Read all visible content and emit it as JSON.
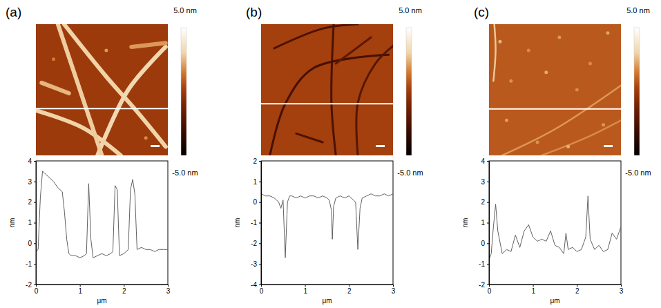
{
  "chart_data": [
    {
      "type": "line",
      "title": "(a)",
      "x_label": "μm",
      "y_label": "nm",
      "color": "#606060",
      "x": [
        0,
        0.05,
        0.1,
        0.15,
        0.2,
        0.3,
        0.4,
        0.5,
        0.6,
        0.65,
        0.7,
        0.75,
        0.8,
        0.9,
        1.0,
        1.1,
        1.15,
        1.2,
        1.25,
        1.3,
        1.4,
        1.5,
        1.6,
        1.7,
        1.75,
        1.8,
        1.85,
        1.9,
        2.0,
        2.1,
        2.15,
        2.2,
        2.25,
        2.3,
        2.4,
        2.5,
        2.6,
        2.7,
        2.8,
        2.9,
        3.0
      ],
      "values": [
        -0.4,
        -0.3,
        2.2,
        3.5,
        3.4,
        3.2,
        3.0,
        2.7,
        2.5,
        1.5,
        0.2,
        -0.5,
        -0.6,
        -0.6,
        -0.7,
        -0.6,
        -0.5,
        2.9,
        0.2,
        -0.7,
        -0.6,
        -0.5,
        -0.6,
        -0.5,
        -0.4,
        2.8,
        2.6,
        -0.6,
        -0.5,
        -0.3,
        2.6,
        3.1,
        2.4,
        -0.3,
        -0.2,
        -0.3,
        -0.3,
        -0.4,
        -0.3,
        -0.3,
        -0.3
      ],
      "xlim": [
        0,
        3
      ],
      "xticks": [
        0,
        1,
        2,
        3
      ],
      "ylim": [
        -2,
        4
      ],
      "yticks": [
        -2,
        -1,
        0,
        1,
        2,
        3,
        4
      ],
      "colorbar": {
        "range": [
          -5,
          5
        ],
        "ticks": [
          {
            "value": 5,
            "label": "5.0 nm"
          },
          {
            "value": -5,
            "label": "-5.0 nm"
          }
        ]
      },
      "background": 0,
      "fibers": [
        {
          "points": [
            [
              0.64,
              0
            ],
            [
              1.6,
              1.2
            ],
            [
              2.3,
              2.0
            ],
            [
              2.95,
              2.8
            ]
          ],
          "height": 3
        },
        {
          "points": [
            [
              2.95,
              0.52
            ],
            [
              2.1,
              1.5
            ],
            [
              1.4,
              3.0
            ]
          ],
          "height": 3.2
        },
        {
          "points": [
            [
              0,
              1.97
            ],
            [
              1.07,
              2.37
            ],
            [
              1.93,
              3.0
            ]
          ],
          "height": 3
        },
        {
          "points": [
            [
              0.13,
              1.34
            ],
            [
              0.75,
              1.58
            ]
          ],
          "height": 2.5
        },
        {
          "points": [
            [
              2.17,
              0.52
            ],
            [
              2.95,
              0.43
            ]
          ],
          "height": 2
        },
        {
          "points": [
            [
              0.5,
              0
            ],
            [
              1.0,
              1.5
            ],
            [
              1.5,
              3.0
            ]
          ],
          "height": 2.9
        }
      ],
      "spots": [
        [
          1.6,
          0.6,
          2.0
        ],
        [
          0.4,
          0.8,
          1.5
        ],
        [
          2.5,
          2.6,
          1.8
        ]
      ],
      "profile_y": 1.93,
      "scale_bar": 0.2
    },
    {
      "type": "line",
      "title": "(b)",
      "x_label": "μm",
      "y_label": "nm",
      "color": "#606060",
      "x": [
        0,
        0.1,
        0.2,
        0.3,
        0.4,
        0.45,
        0.5,
        0.55,
        0.6,
        0.65,
        0.7,
        0.8,
        0.9,
        1.0,
        1.1,
        1.2,
        1.3,
        1.4,
        1.5,
        1.55,
        1.6,
        1.62,
        1.65,
        1.7,
        1.8,
        1.9,
        2.0,
        2.1,
        2.15,
        2.2,
        2.25,
        2.3,
        2.4,
        2.5,
        2.6,
        2.7,
        2.8,
        2.9,
        3.0
      ],
      "values": [
        0.4,
        0.3,
        0.3,
        0.2,
        0.0,
        -0.3,
        0.1,
        -2.7,
        0.0,
        0.3,
        0.3,
        0.2,
        0.3,
        0.2,
        0.3,
        0.3,
        0.2,
        0.3,
        0.2,
        0.1,
        -0.4,
        -1.8,
        -0.2,
        0.2,
        0.3,
        0.2,
        0.3,
        0.1,
        0.0,
        -2.3,
        -0.3,
        0.2,
        0.3,
        0.4,
        0.3,
        0.3,
        0.4,
        0.3,
        0.4
      ],
      "xlim": [
        0,
        3
      ],
      "xticks": [
        0,
        1,
        2,
        3
      ],
      "ylim": [
        -4,
        2
      ],
      "yticks": [
        -4,
        -3,
        -2,
        -1,
        0,
        1,
        2
      ],
      "colorbar": {
        "range": [
          -5,
          5
        ],
        "ticks": [
          {
            "value": 5,
            "label": "5.0 nm"
          },
          {
            "value": -5,
            "label": "-5.0 nm"
          }
        ]
      },
      "background": 0.2,
      "fibers": [
        {
          "points": [
            [
              0.3,
              0.55
            ],
            [
              1.4,
              0.1
            ],
            [
              2.2,
              0.0
            ]
          ],
          "height": -2.5
        },
        {
          "points": [
            [
              1.65,
              0
            ],
            [
              1.6,
              1.8
            ],
            [
              1.7,
              3.0
            ]
          ],
          "height": -2.5
        },
        {
          "points": [
            [
              0.2,
              3.0
            ],
            [
              0.55,
              1.82
            ],
            [
              1.2,
              1.0
            ],
            [
              2.9,
              0.7
            ]
          ],
          "height": -2.7
        },
        {
          "points": [
            [
              2.2,
              3.0
            ],
            [
              2.2,
              1.8
            ],
            [
              2.6,
              0.9
            ],
            [
              3.0,
              0.5
            ]
          ],
          "height": -2.2
        },
        {
          "points": [
            [
              0.8,
              2.5
            ],
            [
              1.4,
              2.7
            ]
          ],
          "height": -2.5
        },
        {
          "points": [
            [
              1.7,
              0.9
            ],
            [
              2.5,
              0.3
            ]
          ],
          "height": -2.0
        }
      ],
      "profile_y": 1.82,
      "scale_bar": 0.2
    },
    {
      "type": "line",
      "title": "(c)",
      "x_label": "μm",
      "y_label": "nm",
      "color": "#606060",
      "x": [
        0,
        0.05,
        0.1,
        0.15,
        0.2,
        0.3,
        0.4,
        0.5,
        0.6,
        0.7,
        0.8,
        0.9,
        1.0,
        1.1,
        1.2,
        1.3,
        1.4,
        1.5,
        1.6,
        1.7,
        1.75,
        1.8,
        1.9,
        2.0,
        2.1,
        2.2,
        2.25,
        2.3,
        2.4,
        2.5,
        2.6,
        2.7,
        2.8,
        2.9,
        3.0
      ],
      "values": [
        -0.8,
        -0.5,
        0.8,
        1.9,
        0.6,
        -0.5,
        -0.3,
        -0.4,
        0.4,
        -0.2,
        0.6,
        0.9,
        0.3,
        0.1,
        0.2,
        0.1,
        0.6,
        -0.1,
        -0.2,
        -0.5,
        0.5,
        -0.3,
        -0.2,
        -0.4,
        -0.3,
        0.3,
        2.3,
        0.2,
        -0.3,
        -0.1,
        -0.4,
        -0.3,
        0.5,
        0.2,
        0.8
      ],
      "xlim": [
        0,
        3
      ],
      "xticks": [
        0,
        1,
        2,
        3
      ],
      "ylim": [
        -2,
        4
      ],
      "yticks": [
        -2,
        -1,
        0,
        1,
        2,
        3,
        4
      ],
      "colorbar": {
        "range": [
          -5,
          5
        ],
        "ticks": [
          {
            "value": 5,
            "label": "5.0 nm"
          },
          {
            "value": -5,
            "label": "-5.0 nm"
          }
        ]
      },
      "background": 0.8,
      "fibers": [
        {
          "points": [
            [
              0.12,
              0
            ],
            [
              0.15,
              0.6
            ],
            [
              0.1,
              1.3
            ]
          ],
          "height": 2.8
        },
        {
          "points": [
            [
              0.3,
              3.0
            ],
            [
              1.5,
              2.4
            ],
            [
              3.0,
              1.4
            ]
          ],
          "height": 2.0
        },
        {
          "points": [
            [
              1.2,
              3.0
            ],
            [
              2.2,
              2.6
            ],
            [
              3.0,
              2.2
            ]
          ],
          "height": 1.8
        }
      ],
      "spots": [
        [
          0.25,
          0.4,
          2.5
        ],
        [
          0.9,
          0.6,
          1.8
        ],
        [
          1.6,
          0.3,
          2.0
        ],
        [
          2.3,
          0.9,
          1.8
        ],
        [
          2.7,
          0.2,
          2.2
        ],
        [
          0.5,
          1.3,
          1.9
        ],
        [
          1.3,
          1.1,
          2.3
        ],
        [
          2.0,
          1.5,
          1.8
        ],
        [
          2.6,
          2.3,
          2.0
        ],
        [
          1.1,
          2.7,
          1.9
        ],
        [
          0.4,
          2.2,
          2.1
        ],
        [
          1.8,
          2.8,
          2.4
        ]
      ],
      "profile_y": 1.94,
      "scale_bar": 0.2
    }
  ]
}
